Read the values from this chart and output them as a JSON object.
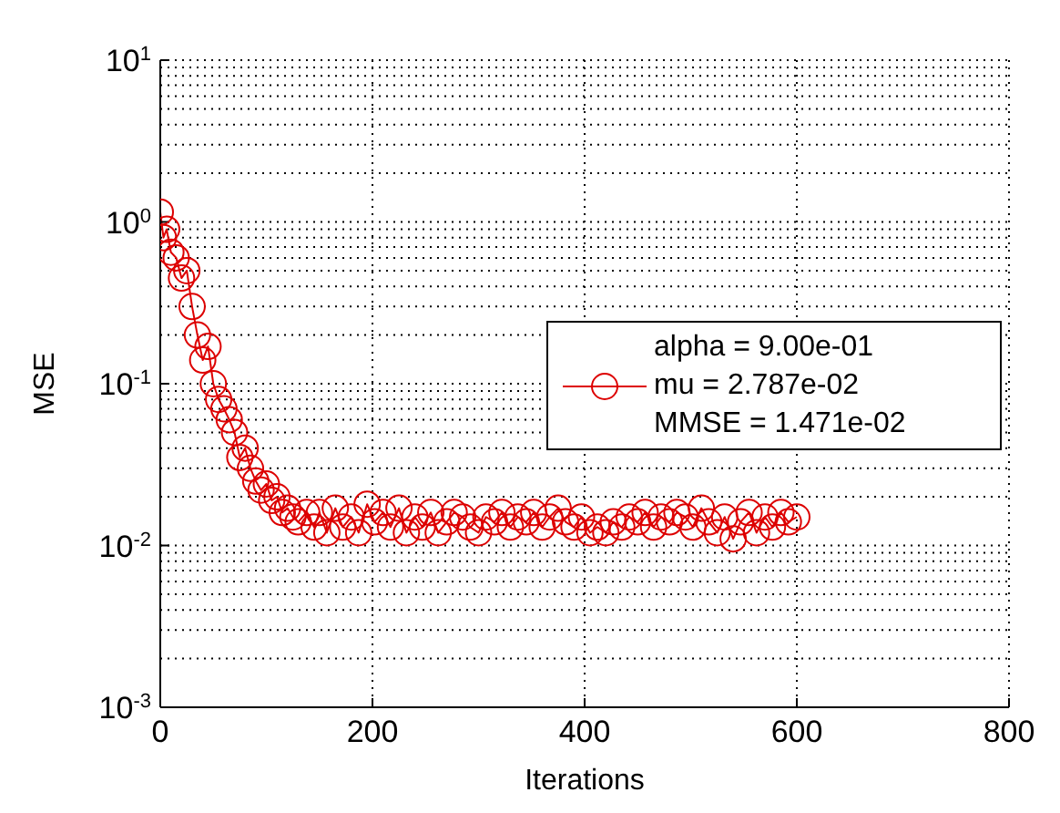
{
  "chart_data": {
    "type": "line",
    "xlabel": "Iterations",
    "ylabel": "MSE",
    "log": "y",
    "grid": true,
    "legend": "right",
    "marker": "circle",
    "line_style": "solid",
    "xlim": [
      0,
      800
    ],
    "xticks": [
      0,
      200,
      400,
      600,
      800
    ],
    "ylim": [
      0.001,
      10
    ],
    "yticks": [
      {
        "value": 0.001,
        "label": "10$^{-3}$"
      },
      {
        "value": 0.01,
        "label": "10$^{-2}$"
      },
      {
        "value": 0.1,
        "label": "10$^{-1}$"
      },
      {
        "value": 1,
        "label": "10$^{0}$"
      },
      {
        "value": 10,
        "label": "10$^{1}$"
      }
    ],
    "annotations": [
      "alpha = 9.00e-01",
      "MMSE = 1.471e-02"
    ],
    "x": [
      0,
      3,
      6,
      10,
      15,
      20,
      25,
      30,
      35,
      40,
      45,
      50,
      55,
      60,
      65,
      70,
      75,
      80,
      85,
      90,
      95,
      100,
      105,
      110,
      115,
      120,
      125,
      130,
      138,
      145,
      150,
      157,
      165,
      172,
      180,
      187,
      195,
      202,
      210,
      217,
      225,
      232,
      240,
      247,
      255,
      262,
      270,
      277,
      285,
      292,
      300,
      307,
      315,
      322,
      330,
      337,
      345,
      352,
      360,
      367,
      375,
      382,
      390,
      397,
      405,
      412,
      420,
      427,
      435,
      442,
      450,
      457,
      465,
      472,
      480,
      487,
      495,
      502,
      510,
      517,
      525,
      532,
      540,
      547,
      555,
      562,
      570,
      577,
      585,
      592,
      600
    ],
    "series": [
      {
        "name": "mu = 2.787e-02",
        "color": "#dd0000",
        "values": [
          1.15,
          0.8,
          0.9,
          0.65,
          0.6,
          0.45,
          0.5,
          0.3,
          0.2,
          0.14,
          0.17,
          0.1,
          0.08,
          0.07,
          0.06,
          0.05,
          0.035,
          0.04,
          0.03,
          0.025,
          0.022,
          0.024,
          0.019,
          0.02,
          0.016,
          0.017,
          0.015,
          0.014,
          0.016,
          0.013,
          0.016,
          0.012,
          0.017,
          0.013,
          0.015,
          0.012,
          0.018,
          0.014,
          0.016,
          0.013,
          0.017,
          0.012,
          0.015,
          0.013,
          0.016,
          0.012,
          0.014,
          0.016,
          0.015,
          0.013,
          0.012,
          0.015,
          0.014,
          0.016,
          0.013,
          0.015,
          0.014,
          0.016,
          0.013,
          0.015,
          0.017,
          0.014,
          0.013,
          0.015,
          0.012,
          0.013,
          0.012,
          0.014,
          0.013,
          0.015,
          0.014,
          0.016,
          0.013,
          0.015,
          0.014,
          0.016,
          0.015,
          0.013,
          0.017,
          0.014,
          0.012,
          0.015,
          0.011,
          0.014,
          0.016,
          0.012,
          0.015,
          0.013,
          0.016,
          0.014,
          0.015
        ]
      }
    ]
  }
}
